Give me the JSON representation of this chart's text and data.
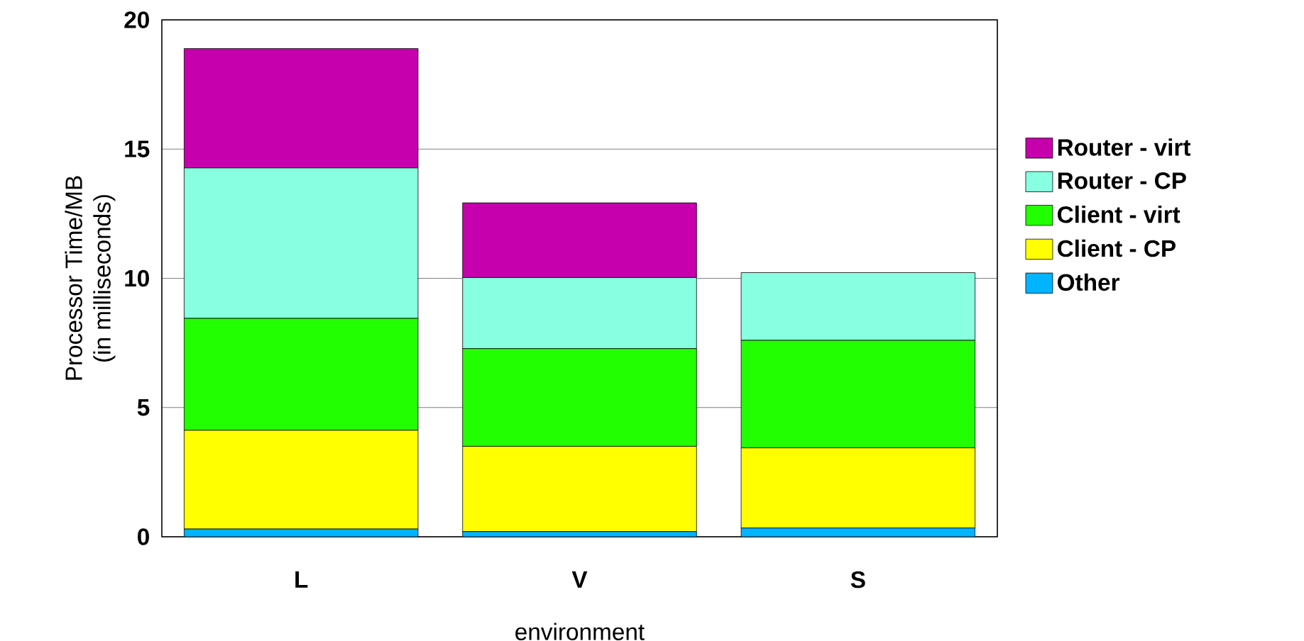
{
  "chart_data": {
    "type": "bar",
    "stacked": true,
    "xlabel": "environment",
    "ylabel": "Processor Time/MB\n(in milliseconds)",
    "categories": [
      "L",
      "V",
      "S"
    ],
    "series": [
      {
        "name": "Other",
        "color": "#00b4ff",
        "values": [
          0.3,
          0.2,
          0.34
        ]
      },
      {
        "name": "Client - CP",
        "color": "#ffff00",
        "values": [
          3.82,
          3.3,
          3.1
        ]
      },
      {
        "name": "Client - virt",
        "color": "#22ff00",
        "values": [
          4.33,
          3.78,
          4.16
        ]
      },
      {
        "name": "Router - CP",
        "color": "#88ffe0",
        "values": [
          5.82,
          2.75,
          2.62
        ]
      },
      {
        "name": "Router - virt",
        "color": "#c600ac",
        "values": [
          4.62,
          2.89,
          null
        ]
      }
    ],
    "ylim": [
      0,
      20
    ],
    "yticks": [
      0,
      5,
      10,
      15,
      20
    ],
    "grid": "y",
    "legend": "right"
  }
}
